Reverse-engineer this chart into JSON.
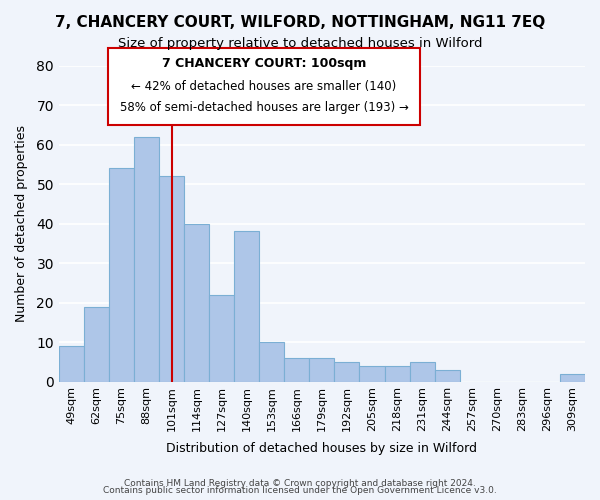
{
  "title": "7, CHANCERY COURT, WILFORD, NOTTINGHAM, NG11 7EQ",
  "subtitle": "Size of property relative to detached houses in Wilford",
  "xlabel": "Distribution of detached houses by size in Wilford",
  "ylabel": "Number of detached properties",
  "bar_color": "#aec6e8",
  "bar_edge_color": "#7bafd4",
  "background_color": "#f0f4fb",
  "grid_color": "#ffffff",
  "categories": [
    "49sqm",
    "62sqm",
    "75sqm",
    "88sqm",
    "101sqm",
    "114sqm",
    "127sqm",
    "140sqm",
    "153sqm",
    "166sqm",
    "179sqm",
    "192sqm",
    "205sqm",
    "218sqm",
    "231sqm",
    "244sqm",
    "257sqm",
    "270sqm",
    "283sqm",
    "296sqm",
    "309sqm"
  ],
  "values": [
    9,
    19,
    54,
    62,
    52,
    40,
    22,
    38,
    10,
    6,
    6,
    5,
    4,
    4,
    5,
    3,
    0,
    0,
    0,
    0,
    2
  ],
  "vline_x": 4,
  "vline_color": "#cc0000",
  "annotation_title": "7 CHANCERY COURT: 100sqm",
  "annotation_line1": "← 42% of detached houses are smaller (140)",
  "annotation_line2": "58% of semi-detached houses are larger (193) →",
  "annotation_box_edge": "#cc0000",
  "ylim": [
    0,
    80
  ],
  "yticks": [
    0,
    10,
    20,
    30,
    40,
    50,
    60,
    70,
    80
  ],
  "footer1": "Contains HM Land Registry data © Crown copyright and database right 2024.",
  "footer2": "Contains public sector information licensed under the Open Government Licence v3.0."
}
